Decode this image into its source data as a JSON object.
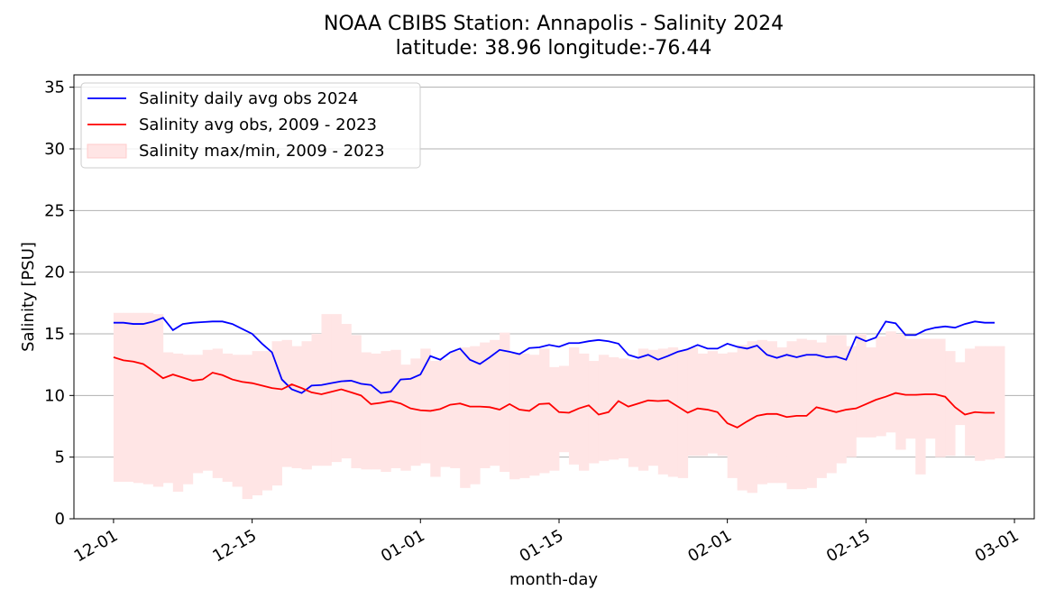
{
  "chart_data": {
    "type": "line",
    "title": "NOAA CBIBS Station: Annapolis - Salinity 2024",
    "subtitle": "latitude: 38.96 longitude:-76.44",
    "xlabel": "month-day",
    "ylabel": "Salinity [PSU]",
    "x": [
      "12-01",
      "12-02",
      "12-03",
      "12-04",
      "12-05",
      "12-06",
      "12-07",
      "12-08",
      "12-09",
      "12-10",
      "12-11",
      "12-12",
      "12-13",
      "12-14",
      "12-15",
      "12-16",
      "12-17",
      "12-18",
      "12-19",
      "12-20",
      "12-21",
      "12-22",
      "12-23",
      "12-24",
      "12-25",
      "12-26",
      "12-27",
      "12-28",
      "12-29",
      "12-30",
      "12-31",
      "01-01",
      "01-02",
      "01-03",
      "01-04",
      "01-05",
      "01-06",
      "01-07",
      "01-08",
      "01-09",
      "01-10",
      "01-11",
      "01-12",
      "01-13",
      "01-14",
      "01-15",
      "01-16",
      "01-17",
      "01-18",
      "01-19",
      "01-20",
      "01-21",
      "01-22",
      "01-23",
      "01-24",
      "01-25",
      "01-26",
      "01-27",
      "01-28",
      "01-29",
      "01-30",
      "01-31",
      "02-01",
      "02-02",
      "02-03",
      "02-04",
      "02-05",
      "02-06",
      "02-07",
      "02-08",
      "02-09",
      "02-10",
      "02-11",
      "02-12",
      "02-13",
      "02-14",
      "02-15",
      "02-16",
      "02-17",
      "02-18",
      "02-19",
      "02-20",
      "02-21",
      "02-22",
      "02-23",
      "02-24",
      "02-25",
      "02-26",
      "02-27",
      "02-28"
    ],
    "series": [
      {
        "name": "Salinity daily avg obs 2024",
        "color": "#0000ff",
        "values": [
          15.9,
          15.9,
          15.8,
          15.8,
          16.0,
          16.3,
          15.3,
          15.8,
          15.9,
          15.95,
          16.0,
          16.0,
          15.8,
          15.4,
          15.0,
          14.2,
          13.5,
          11.3,
          10.5,
          10.2,
          10.8,
          10.85,
          11.0,
          11.15,
          11.2,
          10.95,
          10.85,
          10.2,
          10.3,
          11.3,
          11.35,
          11.7,
          13.2,
          12.9,
          13.5,
          13.8,
          12.9,
          12.55,
          13.1,
          13.7,
          13.55,
          13.35,
          13.85,
          13.9,
          14.1,
          13.95,
          14.25,
          14.25,
          14.4,
          14.5,
          14.4,
          14.2,
          13.3,
          13.05,
          13.3,
          12.9,
          13.2,
          13.55,
          13.75,
          14.1,
          13.8,
          13.8,
          14.2,
          13.95,
          13.8,
          14.05,
          13.3,
          13.05,
          13.3,
          13.1,
          13.3,
          13.3,
          13.1,
          13.15,
          12.9,
          14.75,
          14.4,
          14.7,
          16.0,
          15.85,
          14.9,
          14.9,
          15.3,
          15.5,
          15.6,
          15.5,
          15.8,
          16.0,
          15.9,
          15.9
        ]
      },
      {
        "name": "Salinity avg obs, 2009 - 2023",
        "color": "#ff0000",
        "values": [
          13.1,
          12.85,
          12.75,
          12.55,
          12.0,
          11.4,
          11.7,
          11.45,
          11.2,
          11.3,
          11.85,
          11.65,
          11.3,
          11.1,
          11.0,
          10.8,
          10.6,
          10.5,
          10.9,
          10.6,
          10.25,
          10.1,
          10.3,
          10.5,
          10.25,
          10.0,
          9.3,
          9.4,
          9.55,
          9.35,
          8.95,
          8.8,
          8.75,
          8.9,
          9.25,
          9.35,
          9.1,
          9.1,
          9.05,
          8.85,
          9.3,
          8.85,
          8.75,
          9.3,
          9.35,
          8.65,
          8.6,
          8.95,
          9.2,
          8.45,
          8.65,
          9.55,
          9.1,
          9.35,
          9.6,
          9.55,
          9.6,
          9.1,
          8.6,
          8.95,
          8.85,
          8.65,
          7.75,
          7.4,
          7.9,
          8.35,
          8.5,
          8.5,
          8.25,
          8.35,
          8.35,
          9.05,
          8.85,
          8.65,
          8.85,
          8.95,
          9.3,
          9.65,
          9.9,
          10.2,
          10.05,
          10.05,
          10.1,
          10.1,
          9.9,
          9.05,
          8.45,
          8.65,
          8.6,
          8.6
        ]
      },
      {
        "name": "Salinity max/min, 2009 - 2023",
        "color": "#ffe5e5",
        "edge": "#ffcccc",
        "kind": "band",
        "max": [
          16.7,
          16.7,
          16.7,
          16.7,
          16.6,
          13.5,
          13.4,
          13.3,
          13.3,
          13.7,
          13.8,
          13.4,
          13.3,
          13.3,
          13.6,
          13.6,
          14.4,
          14.5,
          14.0,
          14.4,
          15.0,
          16.6,
          16.6,
          15.8,
          14.9,
          13.5,
          13.4,
          13.6,
          13.7,
          12.5,
          13.0,
          13.8,
          12.8,
          12.9,
          13.6,
          13.9,
          14.0,
          14.3,
          14.5,
          15.1,
          13.4,
          13.4,
          13.3,
          13.8,
          12.3,
          12.4,
          13.9,
          13.4,
          12.8,
          13.3,
          13.1,
          13.0,
          12.9,
          13.8,
          13.7,
          13.8,
          13.9,
          13.7,
          13.9,
          13.4,
          13.6,
          13.4,
          13.5,
          14.1,
          14.4,
          14.5,
          14.4,
          13.9,
          14.4,
          14.6,
          14.5,
          14.3,
          14.9,
          14.9,
          14.0,
          15.0,
          13.9,
          14.8,
          15.2,
          15.0,
          14.6,
          14.6,
          14.6,
          14.6,
          13.6,
          12.7,
          13.8,
          14.0,
          14.0,
          14.0
        ],
        "min": [
          3.0,
          3.0,
          2.9,
          2.8,
          2.6,
          2.9,
          2.2,
          2.8,
          3.7,
          3.9,
          3.3,
          3.0,
          2.6,
          1.6,
          1.9,
          2.3,
          2.7,
          4.2,
          4.1,
          4.0,
          4.3,
          4.3,
          4.6,
          4.9,
          4.1,
          4.0,
          4.0,
          3.8,
          4.1,
          3.9,
          4.3,
          4.5,
          3.4,
          4.2,
          4.1,
          2.5,
          2.8,
          4.1,
          4.3,
          3.8,
          3.2,
          3.3,
          3.5,
          3.7,
          3.9,
          5.4,
          4.4,
          3.9,
          4.5,
          4.7,
          4.8,
          4.9,
          4.2,
          3.9,
          4.3,
          3.6,
          3.4,
          3.3,
          5.1,
          5.1,
          5.3,
          5.1,
          3.3,
          2.3,
          2.1,
          2.8,
          2.9,
          2.9,
          2.4,
          2.4,
          2.5,
          3.3,
          3.7,
          4.5,
          5.0,
          6.6,
          6.6,
          6.7,
          7.0,
          5.6,
          6.5,
          3.6,
          6.5,
          5.0,
          5.1,
          7.6,
          5.1,
          4.7,
          4.8,
          4.9
        ]
      }
    ],
    "xlim": [
      "11-27",
      "03-03"
    ],
    "xticks": [
      "12-01",
      "12-15",
      "01-01",
      "01-15",
      "02-01",
      "02-15",
      "03-01"
    ],
    "ylim": [
      0,
      36
    ],
    "yticks": [
      0,
      5,
      10,
      15,
      20,
      25,
      30,
      35
    ],
    "grid": "y",
    "grid_color": "#b0b0b0",
    "legend": "upper-left"
  }
}
